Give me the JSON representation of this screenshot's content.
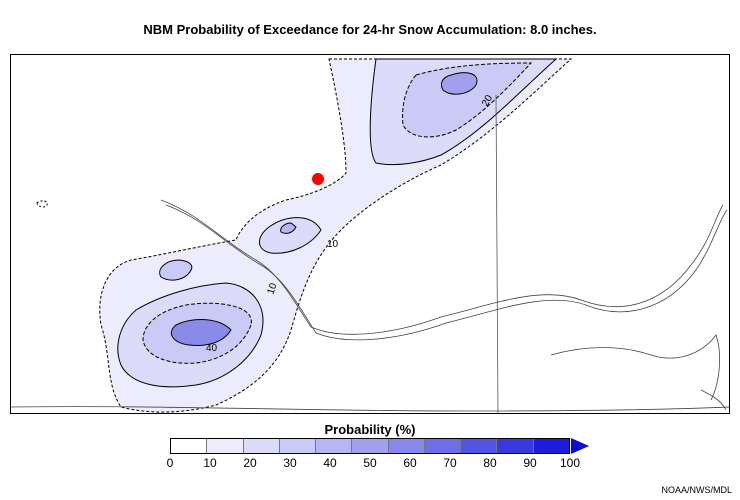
{
  "title": "NBM Probability of Exceedance for 24-hr Snow Accumulation: 8.0 inches.",
  "contour_labels": [
    "10",
    "10",
    "20",
    "40"
  ],
  "legend": {
    "title": "Probability (%)",
    "ticks": [
      "0",
      "10",
      "20",
      "30",
      "40",
      "50",
      "60",
      "70",
      "80",
      "90",
      "100"
    ],
    "colors": [
      "#ffffff",
      "#ececfc",
      "#dcdcfa",
      "#cacaf6",
      "#b6b6f2",
      "#a0a0ee",
      "#8888ea",
      "#6e6ee6",
      "#5454e2",
      "#3939de",
      "#1c1cda",
      "#0202d4"
    ]
  },
  "credit": "NOAA/NWS/MDL",
  "marker": {
    "color": "#ff0000"
  }
}
